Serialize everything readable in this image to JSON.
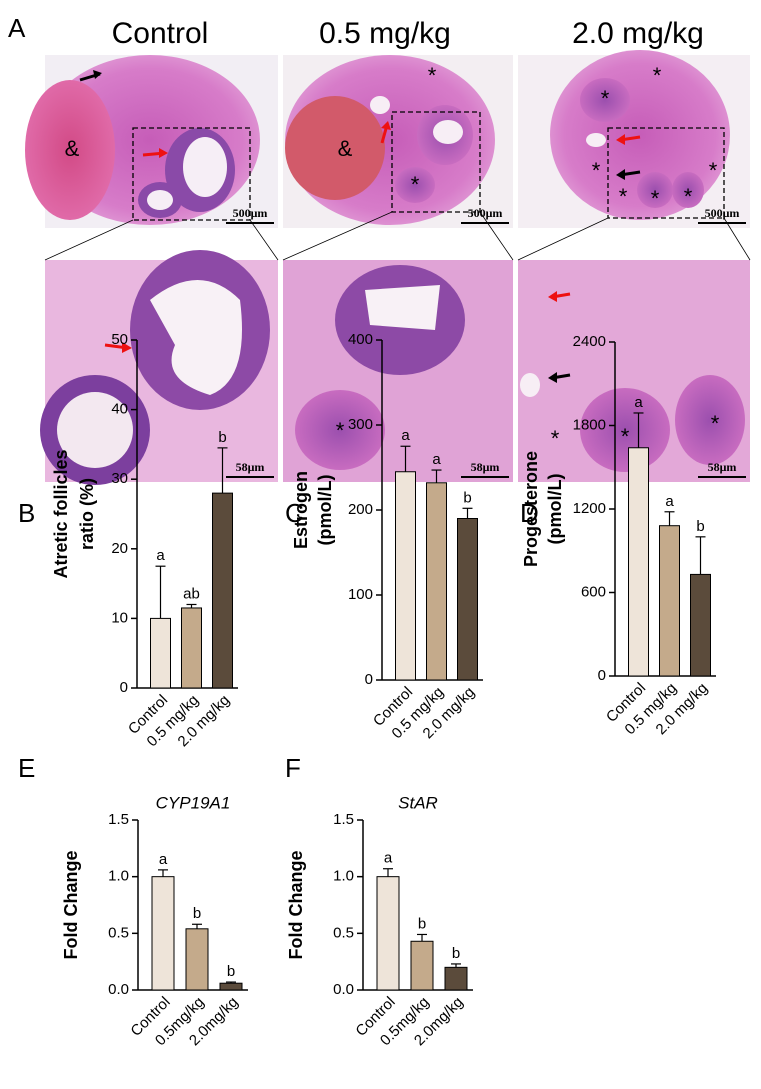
{
  "histology": {
    "label": "A",
    "columns": [
      "Control",
      "0.5 mg/kg",
      "2.0 mg/kg"
    ],
    "images": [
      {
        "scale_bar": "500μm",
        "marks": [
          "&"
        ]
      },
      {
        "scale_bar": "500μm",
        "marks": [
          "&",
          "*",
          "*"
        ]
      },
      {
        "scale_bar": "500μm",
        "marks": [
          "*",
          "*",
          "*",
          "*",
          "*",
          "*",
          "*"
        ]
      },
      {
        "scale_bar": "58μm",
        "marks": []
      },
      {
        "scale_bar": "58μm",
        "marks": [
          "*"
        ]
      },
      {
        "scale_bar": "58μm",
        "marks": [
          "*",
          "*",
          "*"
        ]
      }
    ]
  },
  "chart_data": [
    {
      "type": "bar",
      "panel": "B",
      "ylabel": [
        "Atretic follicles",
        "ratio (%)"
      ],
      "categories": [
        "Control",
        "0.5 mg/kg",
        "2.0 mg/kg"
      ],
      "values": [
        10,
        11.5,
        28
      ],
      "errors": [
        7.5,
        0.5,
        6.5
      ],
      "annotations": [
        "a",
        "ab",
        "b"
      ],
      "colors": [
        "#eee4d9",
        "#c4aa8b",
        "#5b4b3b"
      ],
      "ylim": [
        0,
        50
      ],
      "yticks": [
        0,
        10,
        20,
        30,
        40,
        50
      ]
    },
    {
      "type": "bar",
      "panel": "C",
      "ylabel": [
        "Estrogen",
        "(pmol/L)"
      ],
      "categories": [
        "Control",
        "0.5 mg/kg",
        "2.0 mg/kg"
      ],
      "values": [
        245,
        232,
        190
      ],
      "errors": [
        30,
        15,
        12
      ],
      "annotations": [
        "a",
        "a",
        "b"
      ],
      "colors": [
        "#eee4d9",
        "#c4aa8b",
        "#5b4b3b"
      ],
      "ylim": [
        0,
        400
      ],
      "yticks": [
        0,
        100,
        200,
        300,
        400
      ]
    },
    {
      "type": "bar",
      "panel": "D",
      "ylabel": [
        "Progesterone",
        "(pmol/L)"
      ],
      "categories": [
        "Control",
        "0.5 mg/kg",
        "2.0 mg/kg"
      ],
      "values": [
        1640,
        1080,
        730
      ],
      "errors": [
        250,
        100,
        270
      ],
      "annotations": [
        "a",
        "a",
        "b"
      ],
      "colors": [
        "#eee4d9",
        "#c4aa8b",
        "#5b4b3b"
      ],
      "ylim": [
        0,
        2400
      ],
      "yticks": [
        0,
        600,
        1200,
        1800,
        2400
      ]
    },
    {
      "type": "bar",
      "panel": "E",
      "title": "CYP19A1",
      "ylabel": [
        "Fold Change"
      ],
      "categories": [
        "Control",
        "0.5mg/kg",
        "2.0mg/kg"
      ],
      "values": [
        1.0,
        0.54,
        0.06
      ],
      "errors": [
        0.06,
        0.04,
        0.01
      ],
      "annotations": [
        "a",
        "b",
        "b"
      ],
      "colors": [
        "#eee4d9",
        "#c4aa8b",
        "#5b4b3b"
      ],
      "ylim": [
        0,
        1.5
      ],
      "yticks": [
        {
          "value": 0,
          "label": "0.0"
        },
        0.5,
        {
          "value": 1,
          "label": "1.0"
        },
        1.5
      ]
    },
    {
      "type": "bar",
      "panel": "F",
      "title": "StAR",
      "ylabel": [
        "Fold Change"
      ],
      "categories": [
        "Control",
        "0.5mg/kg",
        "2.0mg/kg"
      ],
      "values": [
        1.0,
        0.43,
        0.2
      ],
      "errors": [
        0.07,
        0.06,
        0.03
      ],
      "annotations": [
        "a",
        "b",
        "b"
      ],
      "colors": [
        "#eee4d9",
        "#c4aa8b",
        "#5b4b3b"
      ],
      "ylim": [
        0,
        1.5
      ],
      "yticks": [
        {
          "value": 0,
          "label": "0.0"
        },
        0.5,
        {
          "value": 1,
          "label": "1.0"
        },
        1.5
      ]
    }
  ]
}
